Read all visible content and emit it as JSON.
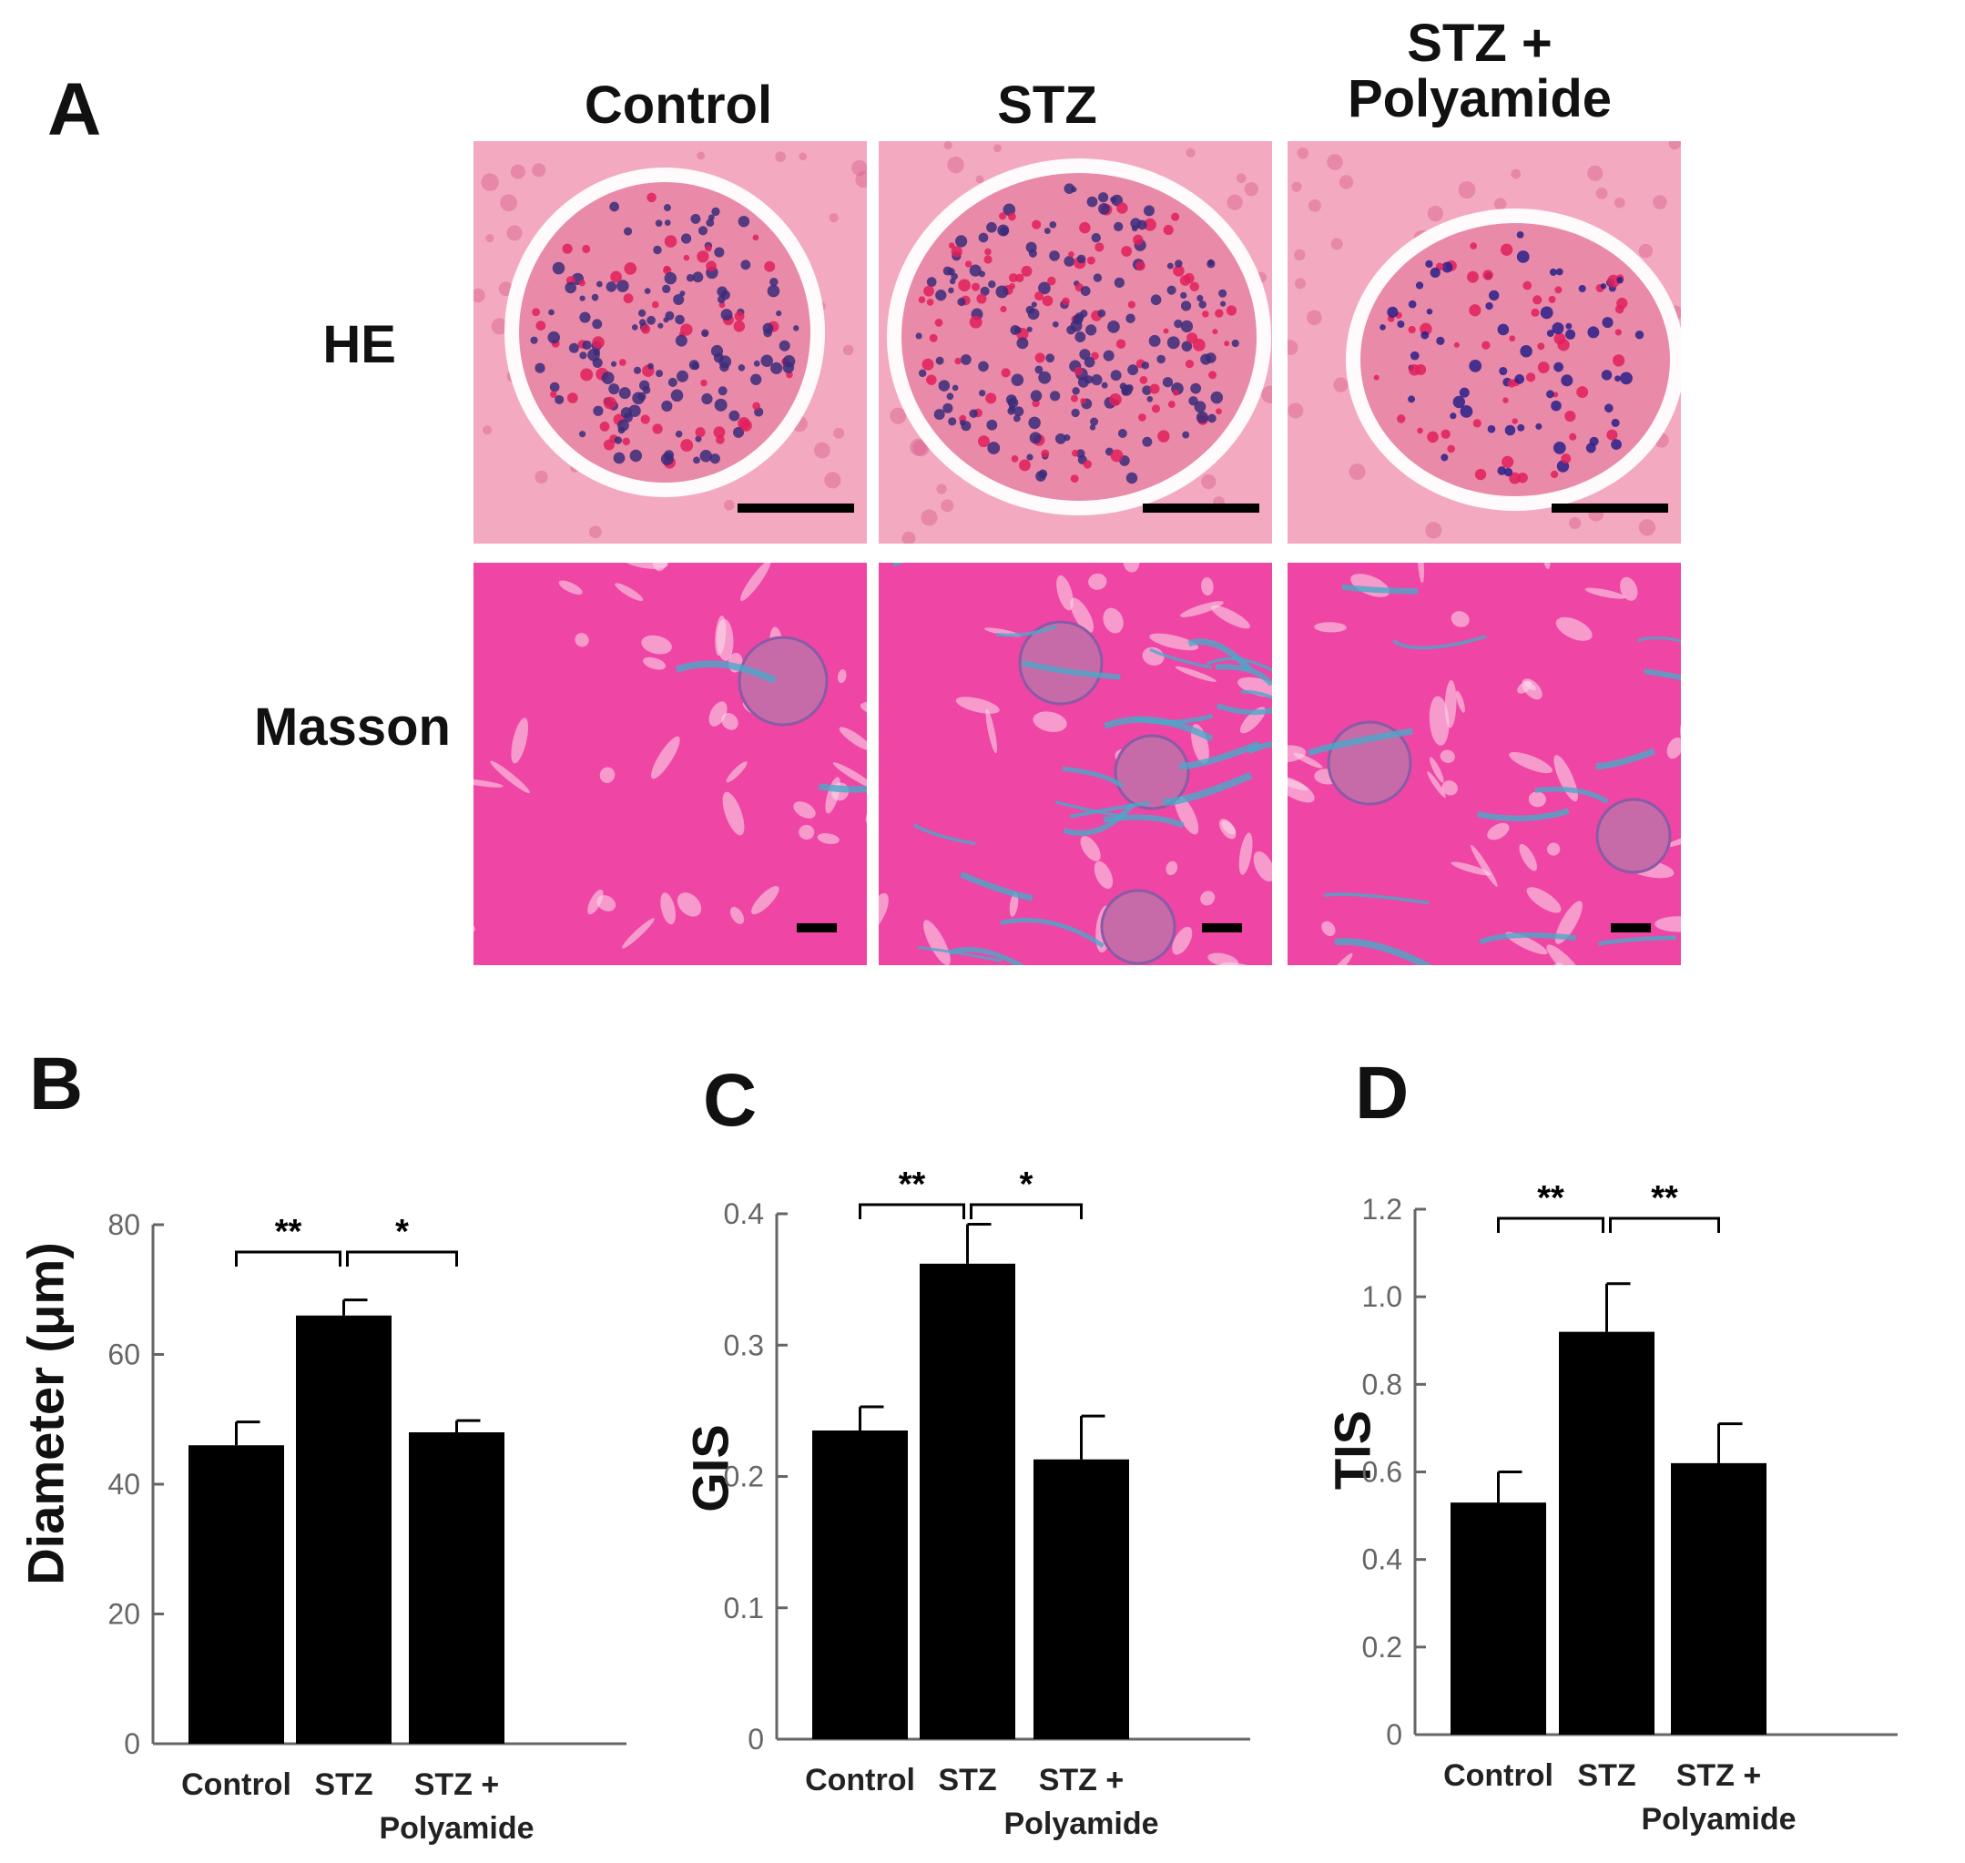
{
  "panels": {
    "a": "A",
    "b": "B",
    "c": "C",
    "d": "D"
  },
  "histology": {
    "columns": [
      "Control",
      "STZ",
      "STZ +\nPolyamide"
    ],
    "rows": [
      "HE",
      "Masson"
    ]
  },
  "colors": {
    "bar": "#000000",
    "axis": "#666666",
    "he_bg": "#f2a7bd",
    "he_nuclei": "#3a2b7a",
    "masson_bg": "#ee3e9c",
    "fibrosis": "#49a9c9"
  },
  "chart_data": [
    {
      "panel": "B",
      "type": "bar",
      "categories": [
        "Control",
        "STZ",
        "STZ +\nPolyamide"
      ],
      "values": [
        46,
        66,
        48
      ],
      "errors": [
        3.6,
        2.4,
        1.8
      ],
      "ylabel": "Diameter (μm)",
      "ylim": [
        0,
        80
      ],
      "yticks": [
        "0",
        "20",
        "40",
        "60",
        "80"
      ],
      "ytick_values": [
        0,
        20,
        40,
        60,
        80
      ],
      "significance": [
        {
          "from": 0,
          "to": 1,
          "label": "**"
        },
        {
          "from": 1,
          "to": 2,
          "label": "*"
        }
      ]
    },
    {
      "panel": "C",
      "type": "bar",
      "categories": [
        "Control",
        "STZ",
        "STZ +\nPolyamide"
      ],
      "values": [
        0.235,
        0.362,
        0.213
      ],
      "errors": [
        0.018,
        0.03,
        0.033
      ],
      "ylabel": "GIS",
      "ylim": [
        0,
        0.4
      ],
      "yticks": [
        "0",
        "0.1",
        "0.2",
        "0.3",
        "0.4"
      ],
      "ytick_values": [
        0,
        0.1,
        0.2,
        0.3,
        0.4
      ],
      "significance": [
        {
          "from": 0,
          "to": 1,
          "label": "**"
        },
        {
          "from": 1,
          "to": 2,
          "label": "*"
        }
      ]
    },
    {
      "panel": "D",
      "type": "bar",
      "categories": [
        "Control",
        "STZ",
        "STZ +\nPolyamide"
      ],
      "values": [
        0.53,
        0.92,
        0.62
      ],
      "errors": [
        0.07,
        0.11,
        0.09
      ],
      "ylabel": "TIS",
      "ylim": [
        0,
        1.2
      ],
      "yticks": [
        "0",
        "0.2",
        "0.4",
        "0.6",
        "0.8",
        "1.0",
        "1.2"
      ],
      "ytick_values": [
        0,
        0.2,
        0.4,
        0.6,
        0.8,
        1.0,
        1.2
      ],
      "significance": [
        {
          "from": 0,
          "to": 1,
          "label": "**"
        },
        {
          "from": 1,
          "to": 2,
          "label": "**"
        }
      ]
    }
  ]
}
